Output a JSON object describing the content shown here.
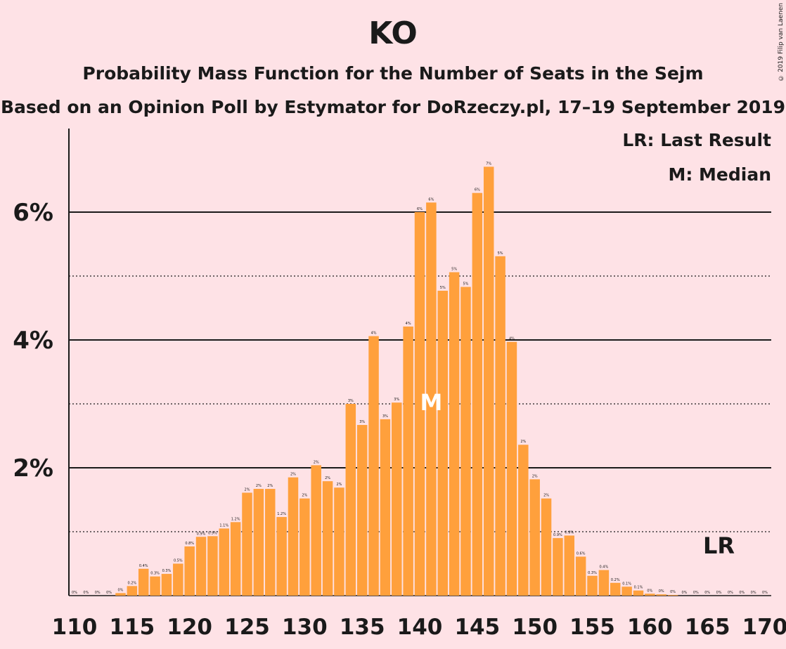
{
  "title": "KO",
  "subtitle1": "Probability Mass Function for the Number of Seats in the Sejm",
  "subtitle2": "Based on an Opinion Poll by Estymator for DoRzeczy.pl, 17–19 September 2019",
  "copyright": "© 2019 Filip van Laenen",
  "legend": {
    "lr": "LR: Last Result",
    "median": "M: Median"
  },
  "markers": {
    "median_label": "M",
    "median_seat": 141,
    "lr_label": "LR",
    "lr_seat": 166
  },
  "colors": {
    "bar": "#ffa03c",
    "background": "#fee2e6",
    "median_text": "#ffffff"
  },
  "chart_data": {
    "type": "bar",
    "ylim": [
      0,
      7.2
    ],
    "yticks": [
      2,
      4,
      6
    ],
    "ytick_labels": [
      "2%",
      "4%",
      "6%"
    ],
    "solid_gridlines": [
      2,
      4,
      6
    ],
    "dotted_gridlines": [
      1,
      3,
      5
    ],
    "xticks": [
      110,
      115,
      120,
      125,
      130,
      135,
      140,
      145,
      150,
      155,
      160,
      165,
      170
    ],
    "x": [
      110,
      111,
      112,
      113,
      114,
      115,
      116,
      117,
      118,
      119,
      120,
      121,
      122,
      123,
      124,
      125,
      126,
      127,
      128,
      129,
      130,
      131,
      132,
      133,
      134,
      135,
      136,
      137,
      138,
      139,
      140,
      141,
      142,
      143,
      144,
      145,
      146,
      147,
      148,
      149,
      150,
      151,
      152,
      153,
      154,
      155,
      156,
      157,
      158,
      159,
      160,
      161,
      162,
      163,
      164,
      165,
      166,
      167,
      168,
      169,
      170
    ],
    "values": [
      0,
      0,
      0,
      0,
      0.04,
      0.15,
      0.42,
      0.3,
      0.34,
      0.5,
      0.77,
      0.92,
      0.93,
      1.05,
      1.15,
      1.61,
      1.67,
      1.67,
      1.23,
      1.85,
      1.52,
      2.04,
      1.79,
      1.69,
      3.0,
      2.67,
      4.06,
      2.76,
      3.02,
      4.21,
      6.0,
      6.15,
      4.77,
      5.06,
      4.83,
      6.3,
      6.71,
      5.31,
      3.97,
      2.36,
      1.82,
      1.52,
      0.9,
      0.94,
      0.61,
      0.31,
      0.4,
      0.2,
      0.14,
      0.08,
      0.03,
      0.02,
      0.01,
      0,
      0,
      0,
      0,
      0,
      0,
      0,
      0
    ],
    "labels": [
      "0%",
      "0%",
      "0%",
      "0%",
      "0%",
      "0.2%",
      "0.4%",
      "0.3%",
      "0.3%",
      "0.5%",
      "0.8%",
      "0.9%",
      "0.9%",
      "1.1%",
      "1.2%",
      "2%",
      "2%",
      "2%",
      "1.2%",
      "2%",
      "2%",
      "2%",
      "2%",
      "2%",
      "3%",
      "3%",
      "4%",
      "3%",
      "3%",
      "4%",
      "6%",
      "6%",
      "5%",
      "5%",
      "5%",
      "6%",
      "7%",
      "5%",
      "4%",
      "2%",
      "2%",
      "2%",
      "0.9%",
      "0.9%",
      "0.6%",
      "0.3%",
      "0.4%",
      "0.2%",
      "0.1%",
      "0.1%",
      "0%",
      "0%",
      "0%",
      "0%",
      "0%",
      "0%",
      "0%",
      "0%",
      "0%",
      "0%",
      "0%"
    ]
  }
}
